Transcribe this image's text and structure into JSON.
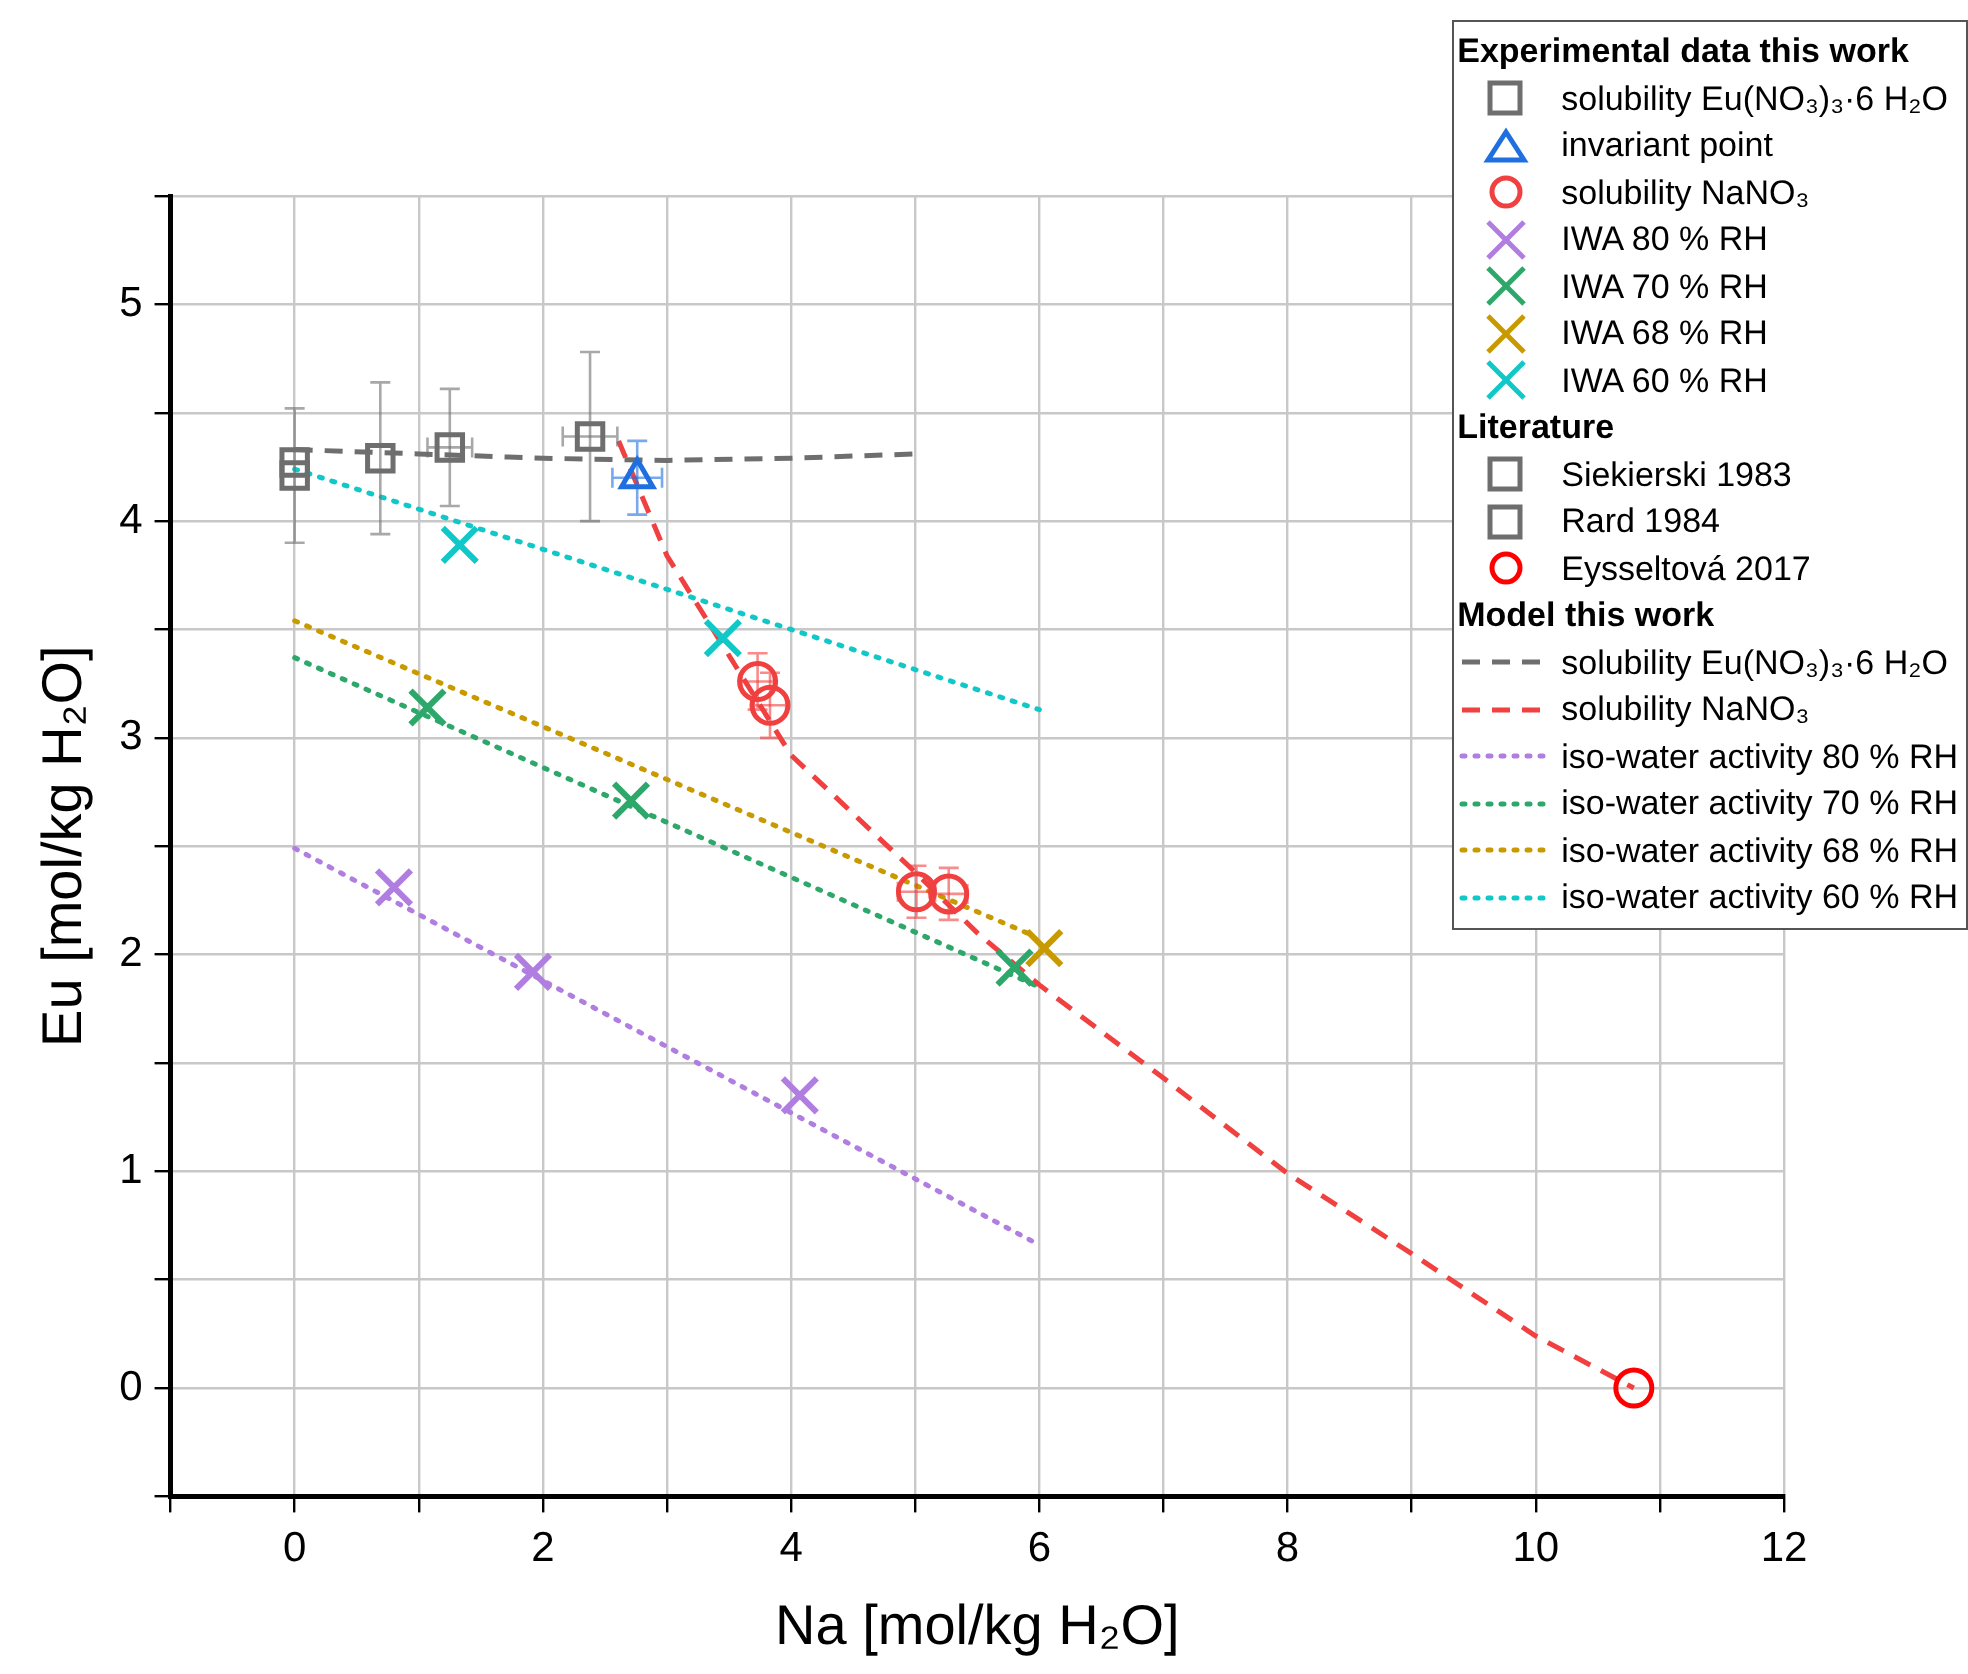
{
  "chart_data": {
    "type": "scatter",
    "xlabel": "Na [mol/kg H₂O]",
    "ylabel": "Eu [mol/kg H₂O]",
    "xlim": [
      -1,
      12
    ],
    "ylim": [
      -0.5,
      5.5
    ],
    "xticks": [
      {
        "value": -1,
        "label": null
      },
      0,
      {
        "value": 1,
        "label": null
      },
      2,
      {
        "value": 3,
        "label": null
      },
      4,
      {
        "value": 5,
        "label": null
      },
      6,
      {
        "value": 7,
        "label": null
      },
      8,
      {
        "value": 9,
        "label": null
      },
      10,
      {
        "value": 11,
        "label": null
      },
      12
    ],
    "yticks": [
      {
        "value": -0.5,
        "label": null
      },
      0,
      {
        "value": 0.5,
        "label": null
      },
      1,
      {
        "value": 1.5,
        "label": null
      },
      2,
      {
        "value": 2.5,
        "label": null
      },
      3,
      {
        "value": 3.5,
        "label": null
      },
      4,
      {
        "value": 4.5,
        "label": null
      },
      5,
      {
        "value": 5.5,
        "label": null
      }
    ],
    "grid": true,
    "legend": "top right",
    "annotations": [
      "Experimental data this work",
      "Literature",
      "Model this work"
    ],
    "series": [
      {
        "name": "solubility Eu(NO₃)₃·6 H₂O",
        "type": "scatter",
        "marker": "square",
        "color": "#6e6e6e",
        "x": [
          0.69,
          1.25,
          2.38
        ],
        "values": [
          4.29,
          4.34,
          4.39
        ],
        "errors": [
          0.35,
          0.27,
          0.39
        ],
        "xerrors": [
          null,
          0.18,
          0.22
        ]
      },
      {
        "name": "invariant point",
        "type": "scatter",
        "marker": "triangle",
        "color": "#1f6fe0",
        "x": [
          2.76
        ],
        "values": [
          4.2
        ],
        "errors": [
          0.17
        ],
        "xerrors": [
          0.2
        ]
      },
      {
        "name": "solubility NaNO₃",
        "type": "scatter",
        "marker": "circle",
        "color": "#f04040",
        "x": [
          3.73,
          3.83,
          5.01,
          5.27
        ],
        "values": [
          3.26,
          3.15,
          2.29,
          2.28
        ],
        "errors": [
          0.13,
          0.15,
          0.12,
          0.12
        ],
        "xerrors": [
          0.13,
          0.13,
          0.15,
          0.15
        ]
      },
      {
        "name": "IWA 80 % RH",
        "type": "scatter",
        "marker": "cross",
        "color": "#b07ee0",
        "x": [
          0.8,
          1.92,
          4.07
        ],
        "values": [
          2.31,
          1.92,
          1.35
        ]
      },
      {
        "name": "IWA 70 % RH",
        "type": "scatter",
        "marker": "cross",
        "color": "#2ea86a",
        "x": [
          1.07,
          2.71,
          5.8
        ],
        "values": [
          3.14,
          2.71,
          1.94
        ]
      },
      {
        "name": "IWA 68 % RH",
        "type": "scatter",
        "marker": "cross",
        "color": "#c89a00",
        "x": [
          6.04
        ],
        "values": [
          2.03
        ]
      },
      {
        "name": "IWA 60 % RH",
        "type": "scatter",
        "marker": "cross",
        "color": "#10c8c8",
        "x": [
          1.33,
          3.45
        ],
        "values": [
          3.89,
          3.46
        ]
      },
      {
        "name": "Siekierski 1983",
        "type": "scatter",
        "marker": "square",
        "color": "#6e6e6e",
        "x": [
          0
        ],
        "values": [
          4.21
        ],
        "errors": [
          0.31
        ]
      },
      {
        "name": "Rard 1984",
        "type": "scatter",
        "marker": "square",
        "color": "#6e6e6e",
        "x": [
          0
        ],
        "values": [
          4.27
        ]
      },
      {
        "name": "Eysseltová 2017",
        "type": "scatter",
        "marker": "circle",
        "color": "#ff0000",
        "x": [
          10.79
        ],
        "values": [
          0
        ]
      },
      {
        "name": "solubility Eu(NO₃)₃·6 H₂O",
        "type": "line",
        "line_style": "dashed",
        "color": "#6e6e6e",
        "x": [
          0,
          1,
          2,
          3,
          4,
          5
        ],
        "values": [
          4.33,
          4.31,
          4.29,
          4.28,
          4.29,
          4.31
        ]
      },
      {
        "name": "solubility NaNO₃",
        "type": "line",
        "line_style": "dashed",
        "color": "#f04040",
        "x": [
          2.61,
          3.0,
          3.5,
          4.0,
          4.5,
          5.0,
          5.5,
          6.0,
          7.0,
          8.0,
          9.0,
          10.0,
          10.79
        ],
        "values": [
          4.37,
          3.84,
          3.38,
          2.92,
          2.65,
          2.38,
          2.1,
          1.86,
          1.43,
          0.99,
          0.62,
          0.24,
          0
        ]
      },
      {
        "name": "iso-water activity 80 % RH",
        "type": "line",
        "line_style": "dotted",
        "color": "#b07ee0",
        "x": [
          0,
          6
        ],
        "values": [
          2.49,
          0.66
        ]
      },
      {
        "name": "iso-water activity 70 % RH",
        "type": "line",
        "line_style": "dotted",
        "color": "#2ea86a",
        "x": [
          0,
          6
        ],
        "values": [
          3.37,
          1.85
        ]
      },
      {
        "name": "iso-water activity 68 % RH",
        "type": "line",
        "line_style": "dotted",
        "color": "#c89a00",
        "x": [
          0,
          5.9
        ],
        "values": [
          3.54,
          2.1
        ]
      },
      {
        "name": "iso-water activity 60 % RH",
        "type": "line",
        "line_style": "dotted",
        "color": "#10c8c8",
        "x": [
          0,
          6
        ],
        "values": [
          4.24,
          3.13
        ]
      }
    ]
  }
}
